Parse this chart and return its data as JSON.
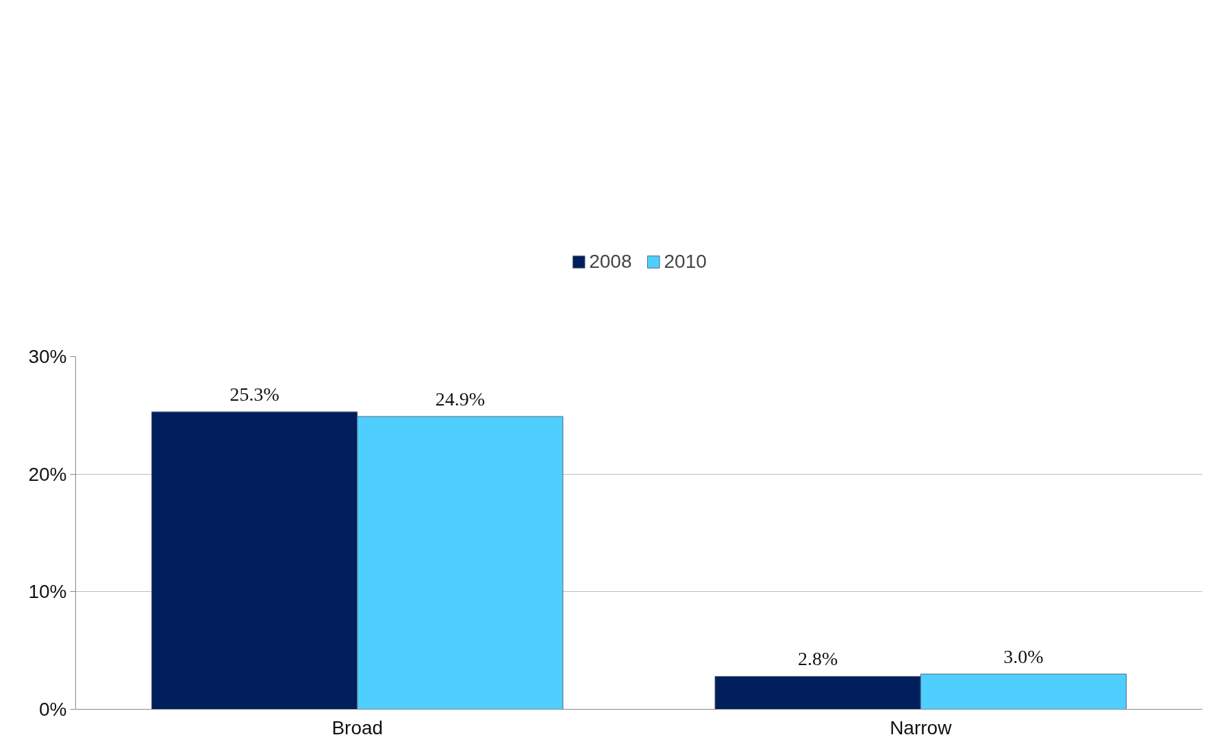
{
  "chart_data": {
    "type": "bar",
    "categories": [
      "Broad",
      "Narrow"
    ],
    "series": [
      {
        "name": "2008",
        "color": "#001f5c",
        "values": [
          25.3,
          2.8
        ],
        "value_labels": [
          "25.3%",
          "2.8%"
        ]
      },
      {
        "name": "2010",
        "color": "#4fcfff",
        "values": [
          24.9,
          3.0
        ],
        "value_labels": [
          "24.9%",
          "3.0%"
        ]
      }
    ],
    "ylim": [
      0,
      30
    ],
    "yticks": [
      {
        "value": 0,
        "label": "0%"
      },
      {
        "value": 10,
        "label": "10%"
      },
      {
        "value": 20,
        "label": "20%"
      },
      {
        "value": 30,
        "label": "30%"
      }
    ],
    "grid": "y",
    "legend": "top"
  }
}
